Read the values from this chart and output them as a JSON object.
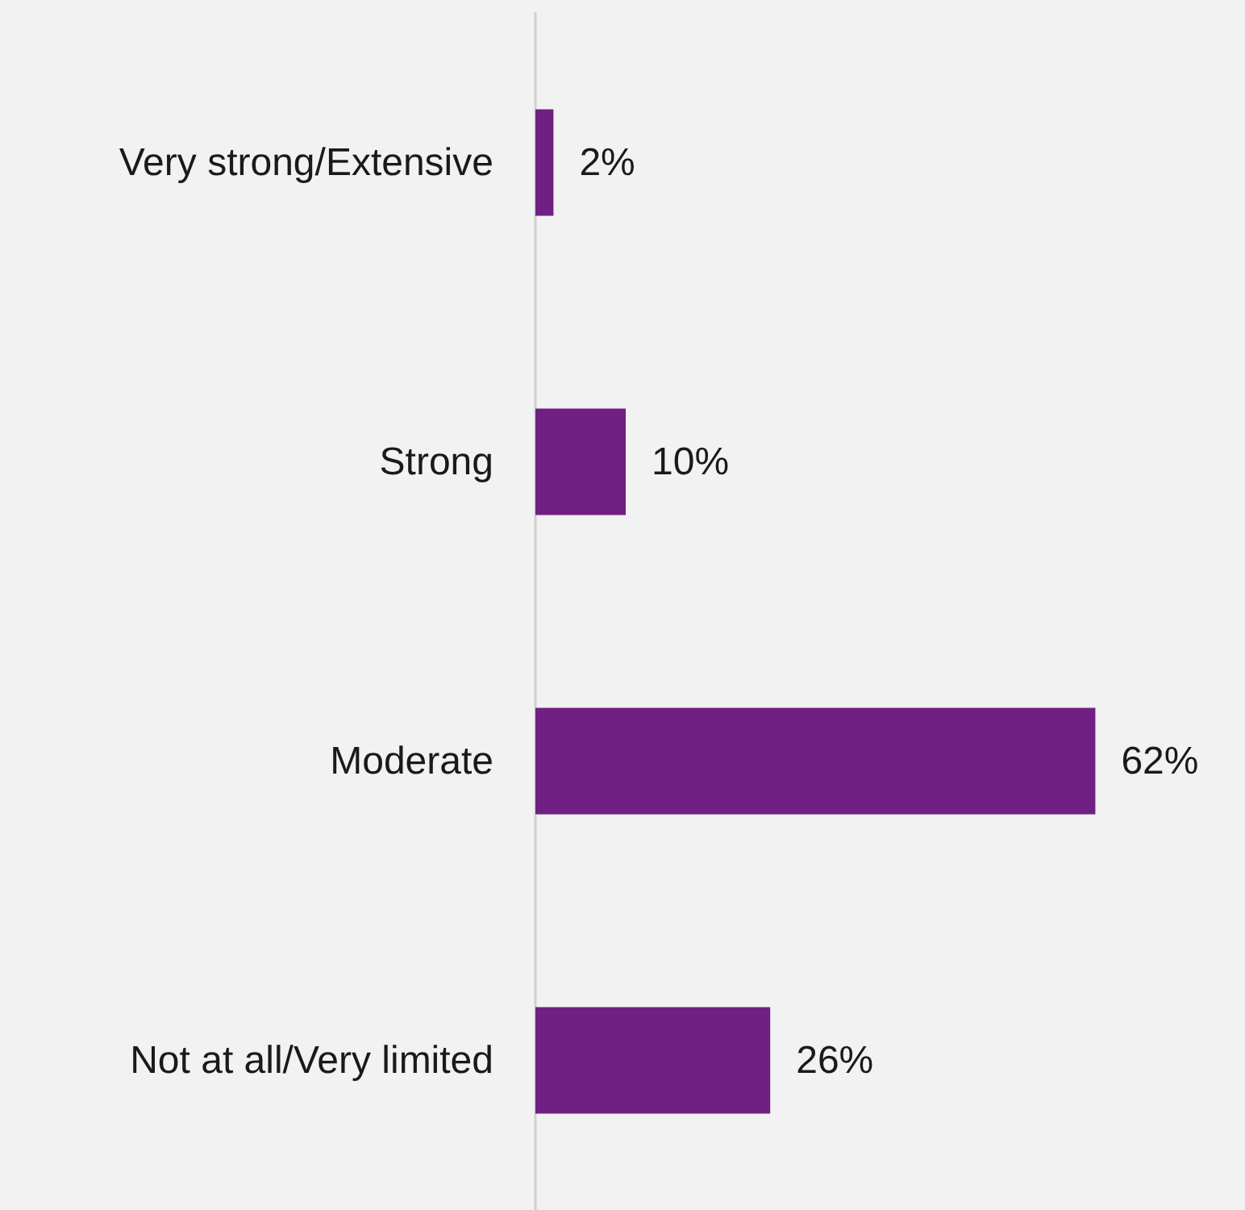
{
  "chart_data": {
    "type": "bar",
    "orientation": "horizontal",
    "categories": [
      "Very strong/Extensive",
      "Strong",
      "Moderate",
      "Not at all/Very limited"
    ],
    "values": [
      2,
      10,
      62,
      26
    ],
    "value_labels": [
      "2%",
      "10%",
      "62%",
      "26%"
    ],
    "color": "#702082"
  }
}
